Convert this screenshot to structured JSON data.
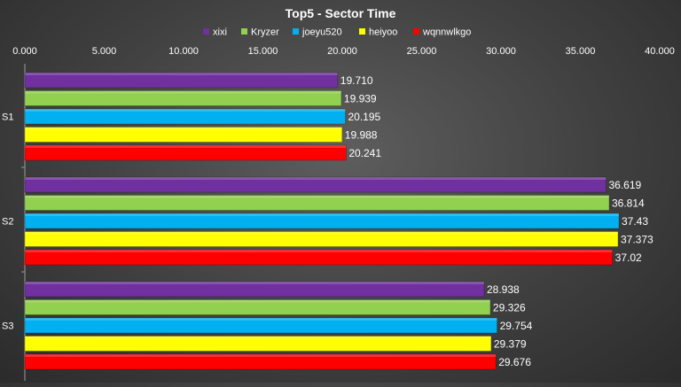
{
  "chart_data": {
    "type": "bar",
    "orientation": "horizontal",
    "title": "Top5 - Sector Time",
    "categories": [
      "S1",
      "S2",
      "S3"
    ],
    "series": [
      {
        "name": "xixi",
        "color": "#7030a0",
        "values": [
          19.71,
          36.619,
          28.938
        ],
        "labels": [
          "19.710",
          "36.619",
          "28.938"
        ]
      },
      {
        "name": "Kryzer",
        "color": "#92d050",
        "values": [
          19.939,
          36.814,
          29.326
        ],
        "labels": [
          "19.939",
          "36.814",
          "29.326"
        ]
      },
      {
        "name": "joeyu520",
        "color": "#00b0f0",
        "values": [
          20.195,
          37.43,
          29.754
        ],
        "labels": [
          "20.195",
          "37.43",
          "29.754"
        ]
      },
      {
        "name": "heiyoo",
        "color": "#ffff00",
        "values": [
          19.988,
          37.373,
          29.379
        ],
        "labels": [
          "19.988",
          "37.373",
          "29.379"
        ]
      },
      {
        "name": "wqnnwlkgo",
        "color": "#ff0000",
        "values": [
          20.241,
          37.02,
          29.676
        ],
        "labels": [
          "20.241",
          "37.02",
          "29.676"
        ]
      }
    ],
    "xlim": [
      0,
      40
    ],
    "xticks": [
      0,
      5,
      10,
      15,
      20,
      25,
      30,
      35,
      40
    ],
    "xtick_labels": [
      "0.000",
      "5.000",
      "10.000",
      "15.000",
      "20.000",
      "25.000",
      "30.000",
      "35.000",
      "40.000"
    ],
    "x_axis_position": "top",
    "legend_position": "top",
    "grid": false
  }
}
